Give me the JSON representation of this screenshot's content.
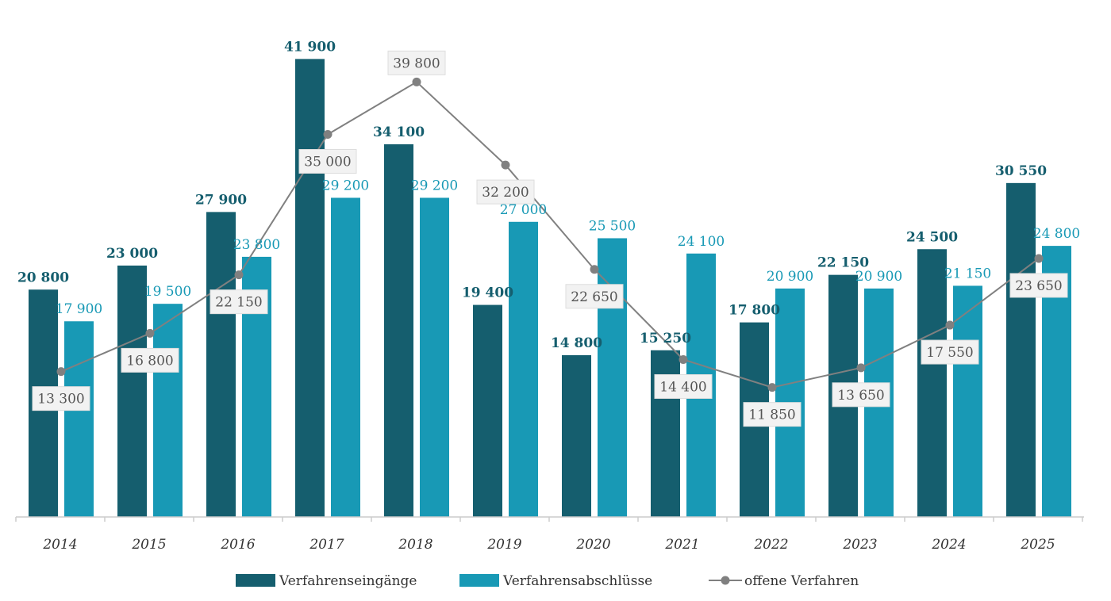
{
  "chart_data": {
    "type": "bar",
    "title": "",
    "xlabel": "",
    "ylabel": "",
    "categories": [
      "2014",
      "2015",
      "2016",
      "2017",
      "2018",
      "2019",
      "2020",
      "2021",
      "2022",
      "2023",
      "2024",
      "2025"
    ],
    "series": [
      {
        "name": "Verfahrenseingänge",
        "type": "bar",
        "color": "#155e6e",
        "values": [
          20800,
          23000,
          27900,
          41900,
          34100,
          19400,
          14800,
          15250,
          17800,
          22150,
          24500,
          30550
        ],
        "labels": [
          "20 800",
          "23 000",
          "27 900",
          "41 900",
          "34 100",
          "19 400",
          "14 800",
          "15 250",
          "17 800",
          "22 150",
          "24 500",
          "30 550"
        ]
      },
      {
        "name": "Verfahrensabschlüsse",
        "type": "bar",
        "color": "#1899b5",
        "values": [
          17900,
          19500,
          23800,
          29200,
          29200,
          27000,
          25500,
          24100,
          20900,
          20900,
          21150,
          24800
        ],
        "labels": [
          "17 900",
          "19 500",
          "23 800",
          "29 200",
          "29 200",
          "27 000",
          "25 500",
          "24 100",
          "20 900",
          "20 900",
          "21 150",
          "24 800"
        ]
      },
      {
        "name": "offene Verfahren",
        "type": "line",
        "color": "#808080",
        "values": [
          13300,
          16800,
          22150,
          35000,
          39800,
          32200,
          22650,
          14400,
          11850,
          13650,
          17550,
          23650
        ],
        "labels": [
          "13 300",
          "16 800",
          "22 150",
          "35 000",
          "39 800",
          "32 200",
          "22 650",
          "14 400",
          "11 850",
          "13 650",
          "17 550",
          "23 650"
        ]
      }
    ],
    "ylim": [
      0,
      42000
    ],
    "grid": false,
    "legend_position": "bottom"
  }
}
